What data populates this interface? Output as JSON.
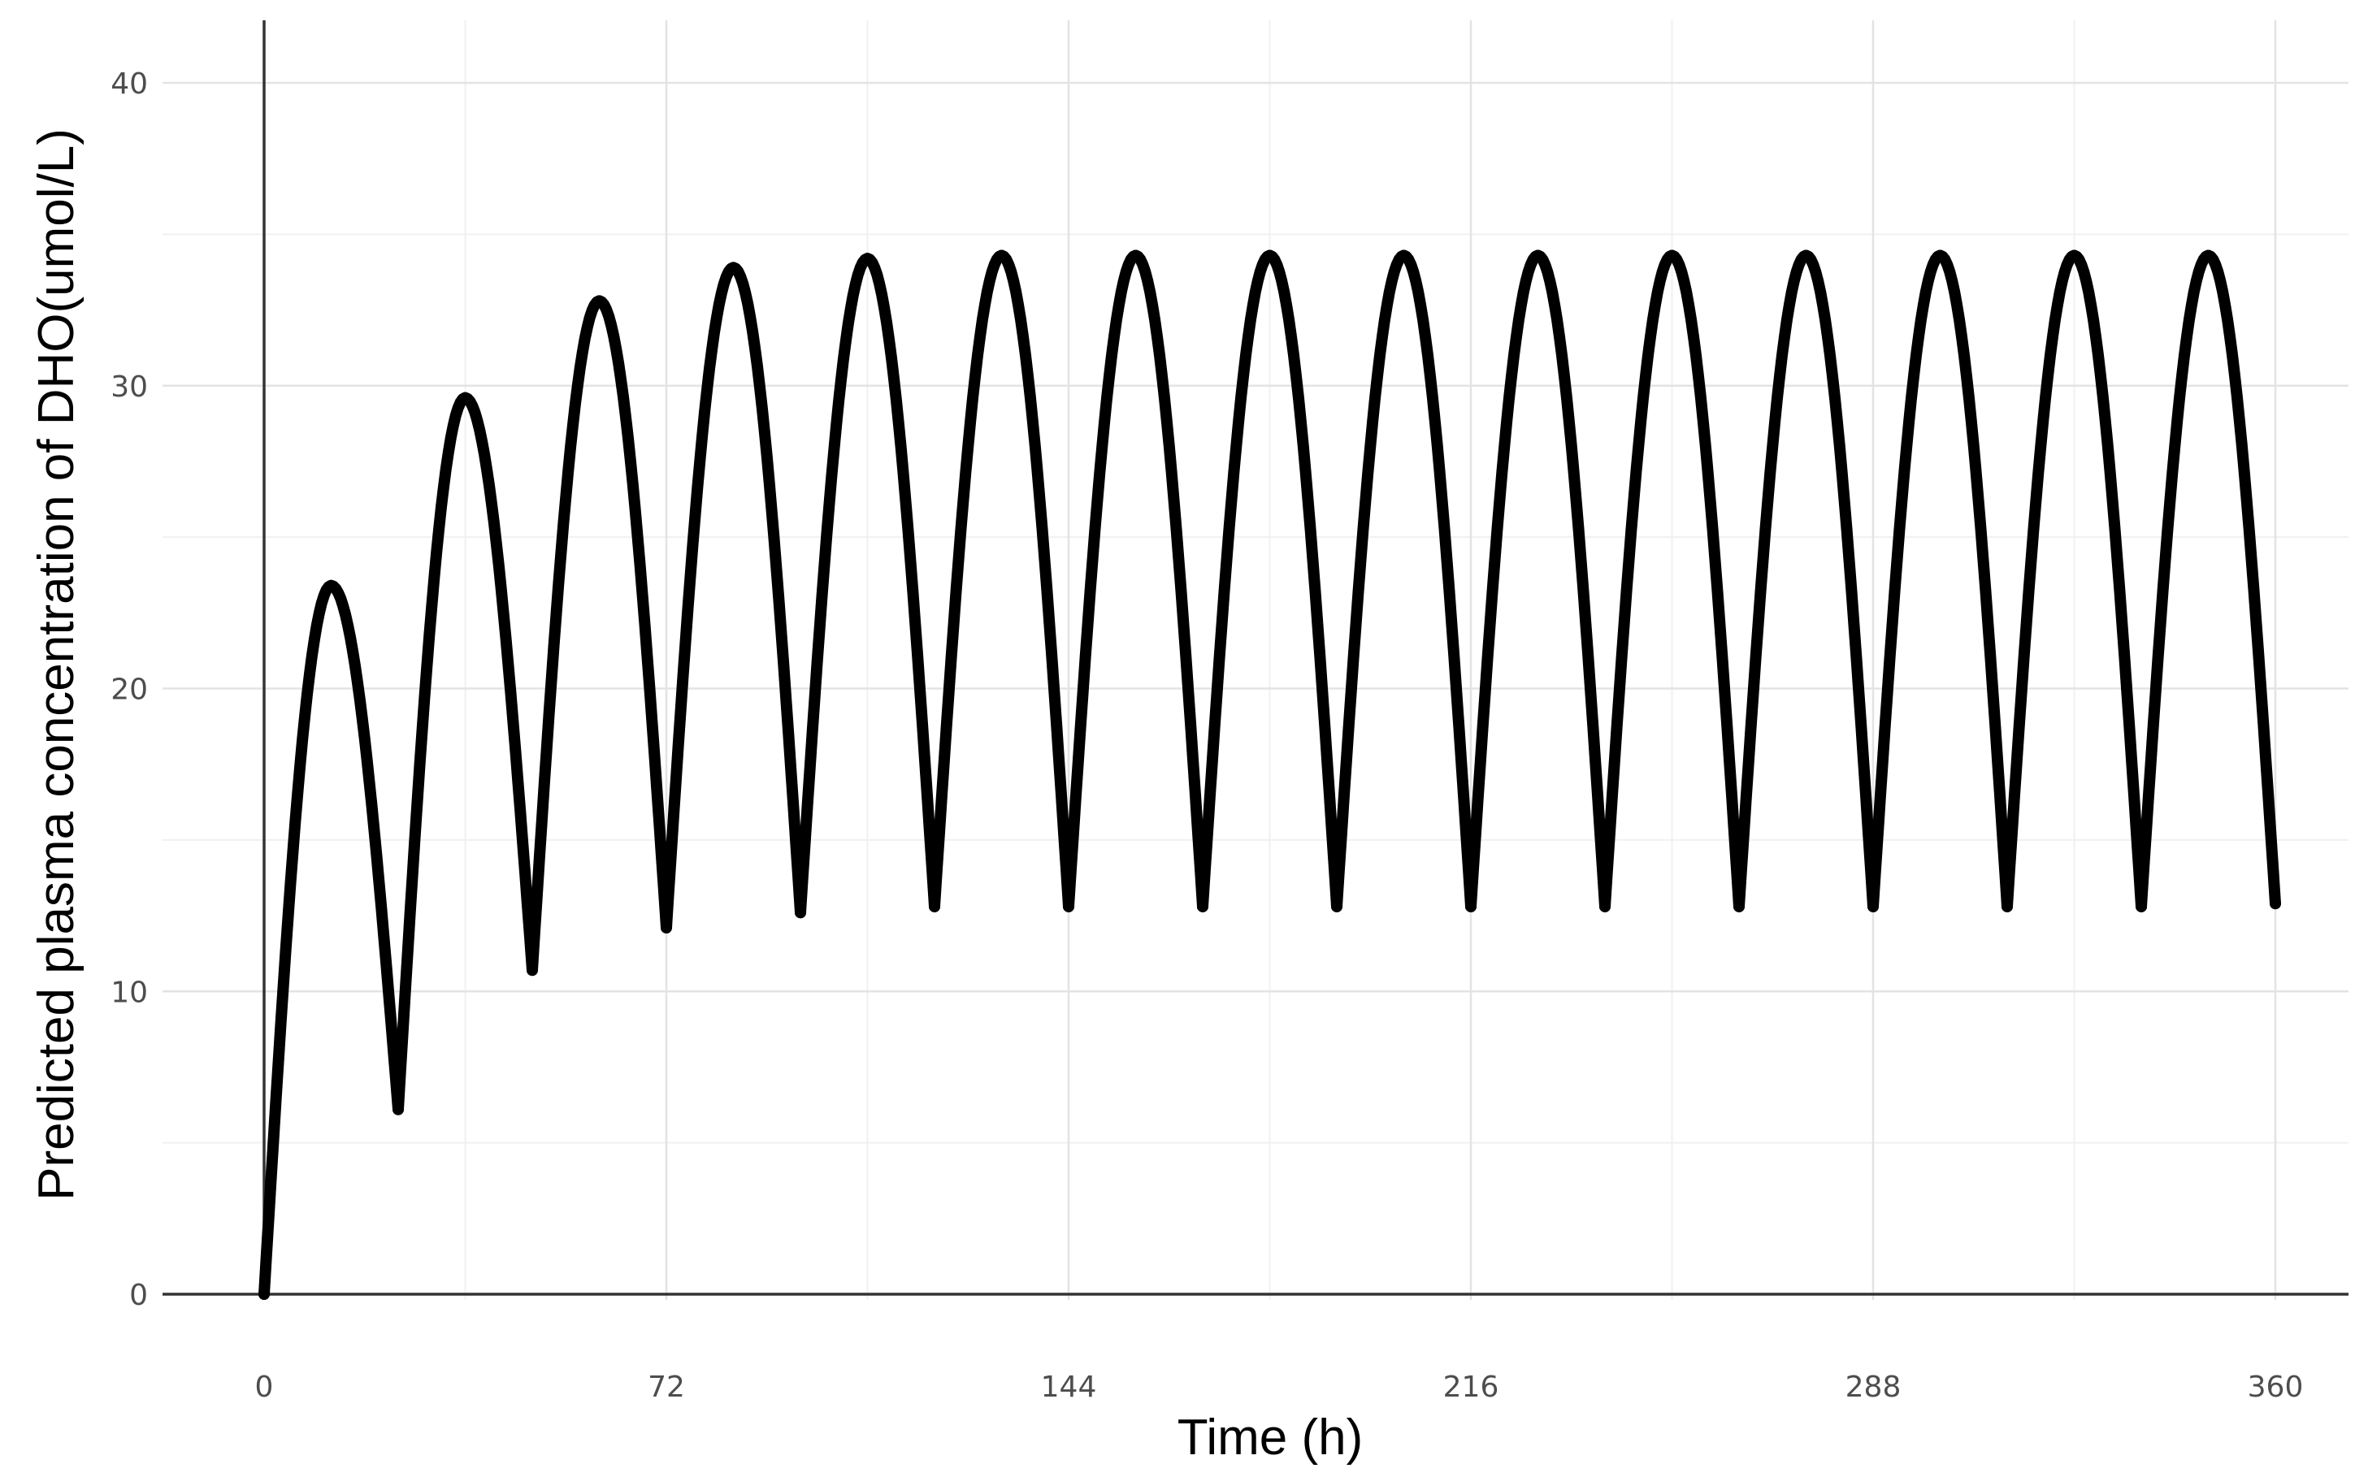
{
  "chart_data": {
    "type": "line",
    "title": "",
    "xlabel": "Time (h)",
    "ylabel": "Predicted plasma concentration of DHO(umol/L)",
    "xlim": [
      0,
      360
    ],
    "ylim": [
      0,
      40
    ],
    "x_ticks": [
      0,
      72,
      144,
      216,
      288,
      360
    ],
    "y_ticks": [
      0,
      10,
      20,
      30,
      40
    ],
    "grid": true,
    "legend": "none",
    "line_color": "#000000",
    "series": [
      {
        "x": [
          0,
          12,
          24,
          36,
          48,
          60,
          72,
          84,
          96,
          108,
          120,
          132,
          144,
          156,
          168,
          180,
          192,
          204,
          216,
          228,
          240,
          252,
          264,
          276,
          288,
          300,
          312,
          324,
          336,
          348,
          360
        ],
        "values": [
          0,
          23.4,
          6.1,
          29.6,
          10.7,
          32.8,
          12.1,
          33.9,
          12.6,
          34.2,
          12.8,
          34.3,
          12.8,
          34.3,
          12.8,
          34.3,
          12.8,
          34.3,
          12.8,
          34.3,
          12.8,
          34.3,
          12.8,
          34.3,
          12.8,
          34.3,
          12.8,
          34.3,
          12.8,
          34.3,
          12.9
        ]
      }
    ]
  }
}
